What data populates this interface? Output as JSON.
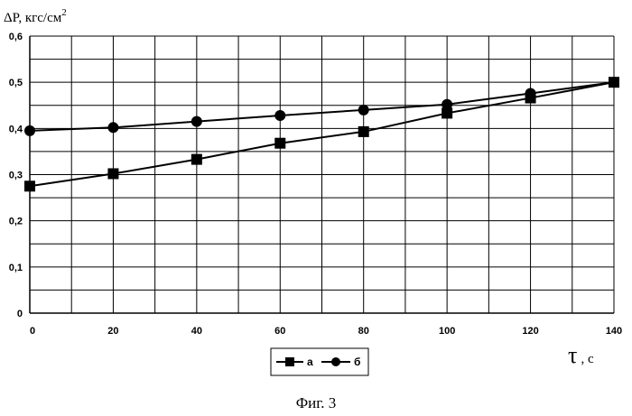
{
  "chart_data": {
    "type": "line",
    "ylabel_main": "ΔP, кгс/см",
    "ylabel_sup": "2",
    "xlabel_symbol": "τ",
    "xlabel_unit": ", с",
    "caption": "Фиг. 3",
    "xlim": [
      0,
      140
    ],
    "ylim": [
      0,
      0.6
    ],
    "x_ticks": [
      0,
      20,
      40,
      60,
      80,
      100,
      120,
      140
    ],
    "x_tick_labels": [
      "0",
      "20",
      "40",
      "60",
      "80",
      "100",
      "120",
      "140"
    ],
    "y_ticks": [
      0,
      0.1,
      0.2,
      0.3,
      0.4,
      0.5,
      0.6
    ],
    "y_tick_labels": [
      "0",
      "0,1",
      "0,2",
      "0,3",
      "0,4",
      "0,5",
      "0,6"
    ],
    "grid": true,
    "legend_position": "bottom-center",
    "series": [
      {
        "name": "а",
        "marker": "square",
        "x": [
          0,
          20,
          40,
          60,
          80,
          100,
          120,
          140
        ],
        "values": [
          0.275,
          0.302,
          0.333,
          0.368,
          0.393,
          0.433,
          0.466,
          0.5
        ]
      },
      {
        "name": "б",
        "marker": "circle",
        "x": [
          0,
          20,
          40,
          60,
          80,
          100,
          120,
          140
        ],
        "values": [
          0.395,
          0.402,
          0.415,
          0.428,
          0.44,
          0.452,
          0.476,
          0.5
        ]
      }
    ]
  }
}
